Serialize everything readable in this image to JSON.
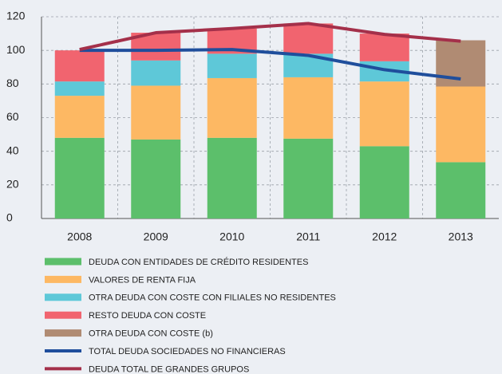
{
  "chart_data": {
    "type": "bar",
    "stacked": true,
    "grid": true,
    "categories": [
      "2008",
      "2009",
      "2010",
      "2011",
      "2012",
      "2013"
    ],
    "ylim": [
      0,
      120
    ],
    "yticks": [
      0,
      20,
      40,
      60,
      80,
      100,
      120
    ],
    "series": [
      {
        "name": "DEUDA CON ENTIDADES DE CRÉDITO RESIDENTES",
        "type": "bar",
        "color": "#5cbf6b",
        "values": [
          48,
          47,
          48,
          47.5,
          43,
          33.5
        ]
      },
      {
        "name": "VALORES DE RENTA FIJA",
        "type": "bar",
        "color": "#fdb863",
        "values": [
          25,
          32,
          35.5,
          36.5,
          38.5,
          45
        ]
      },
      {
        "name": "OTRA DEUDA CON COSTE CON FILIALES NO RESIDENTES",
        "type": "bar",
        "color": "#5ec8d8",
        "values": [
          8.5,
          15,
          14.5,
          14,
          12,
          null
        ]
      },
      {
        "name": "RESTO DEUDA CON COSTE",
        "type": "bar",
        "color": "#f1646f",
        "values": [
          18.5,
          16.5,
          15,
          18,
          16.5,
          null
        ]
      },
      {
        "name": "OTRA DEUDA CON COSTE (b)",
        "type": "bar",
        "color": "#b08b73",
        "values": [
          null,
          null,
          null,
          null,
          null,
          27.5
        ]
      },
      {
        "name": "TOTAL DEUDA SOCIEDADES NO FINANCIERAS",
        "type": "line",
        "color": "#1f4e9c",
        "values": [
          100,
          100,
          100.5,
          97,
          88.5,
          83
        ]
      },
      {
        "name": "DEUDA TOTAL DE GRANDES GRUPOS",
        "type": "line",
        "color": "#a4304a",
        "values": [
          100.5,
          110.5,
          113,
          116,
          109.5,
          105.5
        ]
      }
    ]
  }
}
